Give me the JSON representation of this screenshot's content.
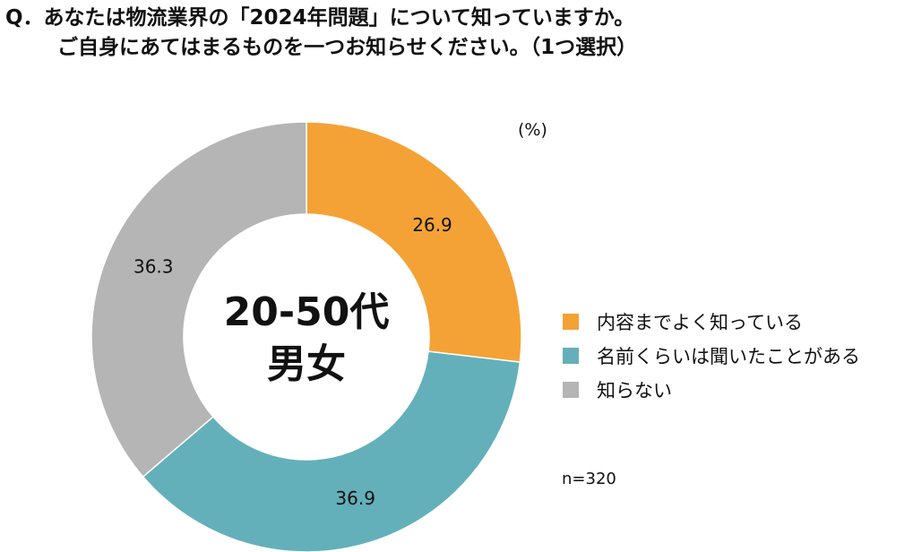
{
  "title": {
    "line1": "Q．あなたは物流業界の「2024年問題」について知っていますか。",
    "line2": "ご自身にあてはまるものを一つお知らせください。（1つ選択）"
  },
  "chart_data": {
    "type": "pie",
    "donut": true,
    "unit_label": "(%)",
    "center_label": [
      "20-50代",
      "男女"
    ],
    "sample_size": "n=320",
    "legend_position": "right",
    "categories": [
      "内容までよく知っている",
      "名前くらいは聞いたことがある",
      "知らない"
    ],
    "values": [
      26.9,
      36.9,
      36.3
    ],
    "colors": [
      "#F4A235",
      "#63B0BA",
      "#B5B5B5"
    ]
  }
}
